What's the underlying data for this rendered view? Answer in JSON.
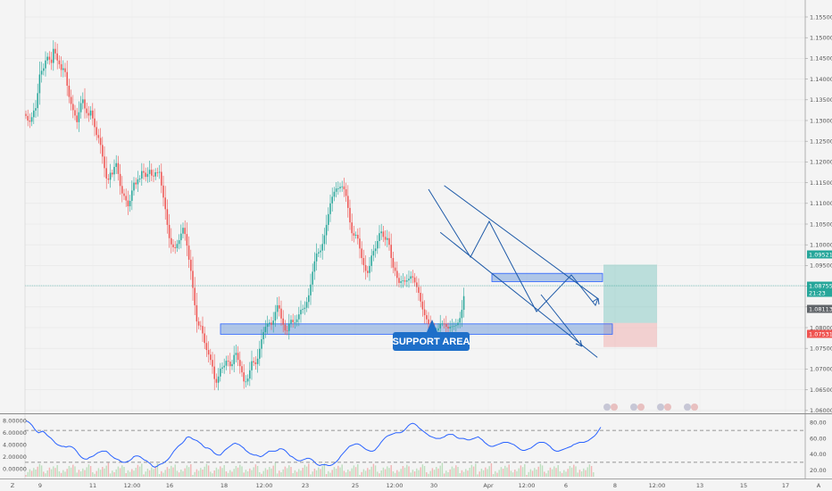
{
  "chart_data": [
    {
      "type": "candlestick",
      "price_axis": {
        "ticks": [
          "1.15500",
          "1.15000",
          "1.14500",
          "1.14000",
          "1.13500",
          "1.13000",
          "1.12500",
          "1.12000",
          "1.11500",
          "1.11000",
          "1.10500",
          "1.10000",
          "1.09500",
          "1.09000",
          "1.08500",
          "1.08000",
          "1.07500",
          "1.07000",
          "1.06500",
          "1.06000"
        ],
        "range": [
          1.0578,
          1.1578
        ]
      },
      "time_axis": {
        "labels": [
          "Z",
          "9",
          "11",
          "12:00",
          "16",
          "18",
          "12:00",
          "23",
          "25",
          "12:00",
          "30",
          "Apr",
          "12:00",
          "6",
          "8",
          "12:00",
          "13",
          "15",
          "17",
          "A"
        ]
      },
      "price_tags": [
        {
          "label": "1.09521",
          "color": "#26a69a"
        },
        {
          "label": "1.08755",
          "color": "#26a69a"
        },
        {
          "label": "21:23",
          "color": "#26a69a"
        },
        {
          "label": "1.08113",
          "color": "#5f6368"
        },
        {
          "label": "1.07531",
          "color": "#ef5350"
        }
      ],
      "current_price": 1.08755,
      "annotations": {
        "support_zone": {
          "label": "SUPPORT AREA",
          "price_low": 1.0784,
          "price_high": 1.0809
        },
        "resistance_zone": {
          "price_low": 1.0911,
          "price_high": 1.0931
        },
        "channel_upper": {
          "from": {
            "bar": 213,
            "price": 1.1143
          },
          "to": {
            "bar": 291,
            "price": 1.0871
          }
        },
        "channel_lower": {
          "from": {
            "bar": 211,
            "price": 1.103
          },
          "to": {
            "bar": 291,
            "price": 1.0728
          }
        },
        "long_position": {
          "entry": 1.08113,
          "target": 1.09521,
          "stop": 1.07531
        }
      },
      "candles": [
        [
          1.1316,
          1.1311
        ],
        [
          1.1311,
          1.13
        ],
        [
          1.13,
          1.1297
        ],
        [
          1.1297,
          1.1308
        ],
        [
          1.1308,
          1.1324
        ],
        [
          1.1324,
          1.133
        ],
        [
          1.133,
          1.1366
        ],
        [
          1.1366,
          1.1411
        ],
        [
          1.1411,
          1.142
        ],
        [
          1.142,
          1.1426
        ],
        [
          1.1426,
          1.1445
        ],
        [
          1.1445,
          1.1454
        ],
        [
          1.1454,
          1.1447
        ],
        [
          1.1447,
          1.1439
        ],
        [
          1.1439,
          1.1473
        ],
        [
          1.1473,
          1.1462
        ],
        [
          1.1462,
          1.1445
        ],
        [
          1.1445,
          1.1436
        ],
        [
          1.1436,
          1.1422
        ],
        [
          1.1422,
          1.1426
        ],
        [
          1.1426,
          1.1417
        ],
        [
          1.1417,
          1.1384
        ],
        [
          1.1384,
          1.1357
        ],
        [
          1.1357,
          1.134
        ],
        [
          1.134,
          1.1325
        ],
        [
          1.1325,
          1.1312
        ],
        [
          1.1312,
          1.1296
        ],
        [
          1.1296,
          1.132
        ],
        [
          1.132,
          1.1342
        ],
        [
          1.1342,
          1.1351
        ],
        [
          1.1351,
          1.1329
        ],
        [
          1.1329,
          1.1318
        ],
        [
          1.1318,
          1.1312
        ],
        [
          1.1312,
          1.1324
        ],
        [
          1.1324,
          1.1305
        ],
        [
          1.1305,
          1.1284
        ],
        [
          1.1284,
          1.1265
        ],
        [
          1.1265,
          1.1258
        ],
        [
          1.1258,
          1.1241
        ],
        [
          1.1241,
          1.1213
        ],
        [
          1.1213,
          1.1185
        ],
        [
          1.1185,
          1.116
        ],
        [
          1.116,
          1.1157
        ],
        [
          1.1157,
          1.1174
        ],
        [
          1.1174,
          1.117
        ],
        [
          1.117,
          1.1188
        ],
        [
          1.1188,
          1.1197
        ],
        [
          1.1197,
          1.1171
        ],
        [
          1.1171,
          1.1142
        ],
        [
          1.1142,
          1.1124
        ],
        [
          1.1124,
          1.1118
        ],
        [
          1.1118,
          1.1107
        ],
        [
          1.1107,
          1.1093
        ],
        [
          1.1093,
          1.1106
        ],
        [
          1.1106,
          1.1131
        ],
        [
          1.1131,
          1.115
        ],
        [
          1.115,
          1.1146
        ],
        [
          1.1146,
          1.1158
        ],
        [
          1.1158,
          1.116
        ],
        [
          1.116,
          1.1178
        ],
        [
          1.1178,
          1.1174
        ],
        [
          1.1174,
          1.1164
        ],
        [
          1.1164,
          1.1171
        ],
        [
          1.1171,
          1.1181
        ],
        [
          1.1181,
          1.1167
        ],
        [
          1.1167,
          1.1165
        ],
        [
          1.1165,
          1.1175
        ],
        [
          1.1175,
          1.1174
        ],
        [
          1.1174,
          1.1176
        ],
        [
          1.1176,
          1.1143
        ],
        [
          1.1143,
          1.1114
        ],
        [
          1.1114,
          1.1086
        ],
        [
          1.1086,
          1.1048
        ],
        [
          1.1048,
          1.1016
        ],
        [
          1.1016,
          1.1001
        ],
        [
          1.1001,
          1.0994
        ],
        [
          1.0994,
          1.0992
        ],
        [
          1.0992,
          1.1002
        ],
        [
          1.1002,
          1.1011
        ],
        [
          1.1011,
          1.1027
        ],
        [
          1.1027,
          1.1041
        ],
        [
          1.1041,
          1.1026
        ],
        [
          1.1026,
          1.0998
        ],
        [
          1.0998,
          1.0964
        ],
        [
          1.0964,
          1.0937
        ],
        [
          1.0937,
          1.0896
        ],
        [
          1.0896,
          1.0854
        ],
        [
          1.0854,
          1.0815
        ],
        [
          1.0815,
          1.0805
        ],
        [
          1.0805,
          1.0804
        ],
        [
          1.0804,
          1.0786
        ],
        [
          1.0786,
          1.0763
        ],
        [
          1.0763,
          1.0746
        ],
        [
          1.0746,
          1.0735
        ],
        [
          1.0735,
          1.0722
        ],
        [
          1.0722,
          1.0706
        ],
        [
          1.0706,
          1.0676
        ],
        [
          1.0676,
          1.0667
        ],
        [
          1.0667,
          1.0682
        ],
        [
          1.0682,
          1.0701
        ],
        [
          1.0701,
          1.0704
        ],
        [
          1.0704,
          1.0708
        ],
        [
          1.0708,
          1.072
        ],
        [
          1.072,
          1.0718
        ],
        [
          1.0718,
          1.0707
        ],
        [
          1.0707,
          1.0712
        ],
        [
          1.0712,
          1.0734
        ],
        [
          1.0734,
          1.0739
        ],
        [
          1.0739,
          1.0722
        ],
        [
          1.0722,
          1.0707
        ],
        [
          1.0707,
          1.0692
        ],
        [
          1.0692,
          1.067
        ],
        [
          1.067,
          1.067
        ],
        [
          1.067,
          1.0677
        ],
        [
          1.0677,
          1.0697
        ],
        [
          1.0697,
          1.0719
        ],
        [
          1.0719,
          1.0716
        ],
        [
          1.0716,
          1.0712
        ],
        [
          1.0712,
          1.0725
        ],
        [
          1.0725,
          1.0749
        ],
        [
          1.0749,
          1.0772
        ],
        [
          1.0772,
          1.0789
        ],
        [
          1.0789,
          1.0802
        ],
        [
          1.0802,
          1.081
        ],
        [
          1.081,
          1.0812
        ],
        [
          1.0812,
          1.0807
        ],
        [
          1.0807,
          1.0817
        ],
        [
          1.0817,
          1.0838
        ],
        [
          1.0838,
          1.0854
        ],
        [
          1.0854,
          1.0846
        ],
        [
          1.0846,
          1.0822
        ],
        [
          1.0822,
          1.0807
        ],
        [
          1.0807,
          1.0793
        ],
        [
          1.0793,
          1.0792
        ],
        [
          1.0792,
          1.081
        ],
        [
          1.081,
          1.0819
        ],
        [
          1.0819,
          1.0813
        ],
        [
          1.0813,
          1.0813
        ],
        [
          1.0813,
          1.082
        ],
        [
          1.082,
          1.0832
        ],
        [
          1.0832,
          1.0843
        ],
        [
          1.0843,
          1.0845
        ],
        [
          1.0845,
          1.0848
        ],
        [
          1.0848,
          1.0862
        ],
        [
          1.0862,
          1.0878
        ],
        [
          1.0878,
          1.0904
        ],
        [
          1.0904,
          1.0935
        ],
        [
          1.0935,
          1.096
        ],
        [
          1.096,
          1.0979
        ],
        [
          1.0979,
          1.0982
        ],
        [
          1.0982,
          1.0986
        ],
        [
          1.0986,
          1.1002
        ],
        [
          1.1002,
          1.1023
        ],
        [
          1.1023,
          1.1048
        ],
        [
          1.1048,
          1.1074
        ],
        [
          1.1074,
          1.11
        ],
        [
          1.11,
          1.1116
        ],
        [
          1.1116,
          1.1128
        ],
        [
          1.1128,
          1.1136
        ],
        [
          1.1136,
          1.1136
        ],
        [
          1.1136,
          1.114
        ],
        [
          1.114,
          1.1141
        ],
        [
          1.1141,
          1.1134
        ],
        [
          1.1134,
          1.1118
        ],
        [
          1.1118,
          1.1089
        ],
        [
          1.1089,
          1.1054
        ],
        [
          1.1054,
          1.1028
        ],
        [
          1.1028,
          1.1022
        ],
        [
          1.1022,
          1.1024
        ],
        [
          1.1024,
          1.1015
        ],
        [
          1.1015,
          1.0991
        ],
        [
          1.0991,
          1.0968
        ],
        [
          1.0968,
          1.0951
        ],
        [
          1.0951,
          1.0937
        ],
        [
          1.0937,
          1.0932
        ],
        [
          1.0932,
          1.0949
        ],
        [
          1.0949,
          1.0974
        ],
        [
          1.0974,
          1.0985
        ],
        [
          1.0985,
          1.0991
        ],
        [
          1.0991,
          1.1009
        ],
        [
          1.1009,
          1.1028
        ],
        [
          1.1028,
          1.1032
        ],
        [
          1.1032,
          1.1019
        ],
        [
          1.1019,
          1.1012
        ],
        [
          1.1012,
          1.1016
        ],
        [
          1.1016,
          1.1
        ],
        [
          1.1,
          1.0968
        ],
        [
          1.0968,
          1.0945
        ],
        [
          1.0945,
          1.0937
        ],
        [
          1.0937,
          1.092
        ],
        [
          1.092,
          1.0908
        ],
        [
          1.0908,
          1.0912
        ],
        [
          1.0912,
          1.0914
        ],
        [
          1.0914,
          1.0911
        ],
        [
          1.0911,
          1.0914
        ],
        [
          1.0914,
          1.0918
        ],
        [
          1.0918,
          1.0924
        ],
        [
          1.0924,
          1.0921
        ],
        [
          1.0921,
          1.0909
        ],
        [
          1.0909,
          1.0898
        ],
        [
          1.0898,
          1.0884
        ],
        [
          1.0884,
          1.0863
        ],
        [
          1.0863,
          1.0844
        ],
        [
          1.0844,
          1.083
        ],
        [
          1.083,
          1.082
        ],
        [
          1.082,
          1.0809
        ],
        [
          1.0809,
          1.0804
        ],
        [
          1.0804,
          1.0795
        ],
        [
          1.0795,
          1.079
        ],
        [
          1.079,
          1.0793
        ],
        [
          1.0793,
          1.0798
        ],
        [
          1.0798,
          1.081
        ],
        [
          1.081,
          1.081
        ],
        [
          1.081,
          1.0809
        ],
        [
          1.0809,
          1.0802
        ],
        [
          1.0802,
          1.0798
        ],
        [
          1.0798,
          1.0802
        ],
        [
          1.0802,
          1.0803
        ],
        [
          1.0803,
          1.0804
        ],
        [
          1.0804,
          1.0806
        ],
        [
          1.0806,
          1.0812
        ],
        [
          1.0812,
          1.0823
        ],
        [
          1.0823,
          1.0843
        ],
        [
          1.0843,
          1.0876
        ]
      ]
    },
    {
      "type": "line",
      "scale_left": [
        "8.00000",
        "6.00000",
        "4.00000",
        "2.00000",
        "0.00000"
      ],
      "scale_right": [
        "80.00",
        "60.00",
        "40.00",
        "20.00"
      ],
      "ylim": [
        12,
        88
      ],
      "levels": [
        70,
        30
      ],
      "values": [
        82,
        81,
        79,
        76,
        72,
        69,
        67,
        68,
        69,
        67,
        64,
        62,
        60,
        57,
        54,
        52,
        51,
        50,
        50,
        49,
        50,
        50,
        49,
        47,
        44,
        40,
        37,
        35,
        34,
        34,
        36,
        37,
        38,
        40,
        42,
        43,
        44,
        44,
        44,
        42,
        39,
        37,
        35,
        34,
        33,
        31,
        30,
        30,
        31,
        32,
        34,
        37,
        38,
        38,
        37,
        35,
        33,
        32,
        30,
        28,
        25,
        24,
        25,
        27,
        28,
        29,
        31,
        33,
        36,
        40,
        44,
        47,
        50,
        52,
        54,
        57,
        61,
        62,
        61,
        59,
        58,
        57,
        55,
        53,
        50,
        48,
        48,
        47,
        45,
        42,
        40,
        39,
        39,
        42,
        45,
        47,
        49,
        51,
        53,
        54,
        53,
        52,
        50,
        48,
        45,
        43,
        41,
        40,
        39,
        39,
        38,
        37,
        38,
        40,
        42,
        44,
        44,
        44,
        44,
        45,
        47,
        47,
        46,
        44,
        41,
        38,
        37,
        35,
        33,
        32,
        32,
        33,
        34,
        35,
        35,
        34,
        32,
        29,
        27,
        26,
        27,
        27,
        27,
        26,
        26,
        27,
        29,
        31,
        34,
        38,
        41,
        44,
        47,
        50,
        51,
        52,
        53,
        53,
        52,
        50,
        48,
        46,
        45,
        44,
        44,
        45,
        48,
        51,
        55,
        58,
        61,
        63,
        64,
        65,
        66,
        67,
        67,
        67,
        68,
        70,
        73,
        76,
        78,
        79,
        78,
        76,
        73,
        71,
        69,
        67,
        65,
        63,
        62,
        61,
        60,
        60,
        60,
        61,
        62,
        64,
        65,
        65,
        65,
        63,
        61,
        60,
        60,
        60,
        59,
        58,
        58,
        59,
        60,
        61,
        62,
        60,
        58,
        55,
        53,
        51,
        50,
        50,
        51,
        52,
        53,
        54,
        55,
        55,
        55,
        54,
        53,
        52,
        50,
        48,
        46,
        45,
        45,
        46,
        47,
        48,
        50,
        52,
        54,
        55,
        55,
        55,
        54,
        52,
        50,
        47,
        45,
        44,
        44,
        45,
        46,
        47,
        48,
        49,
        50,
        52,
        53,
        54,
        55,
        55,
        55,
        56,
        57,
        59,
        61,
        63,
        66,
        70,
        74
      ]
    }
  ]
}
